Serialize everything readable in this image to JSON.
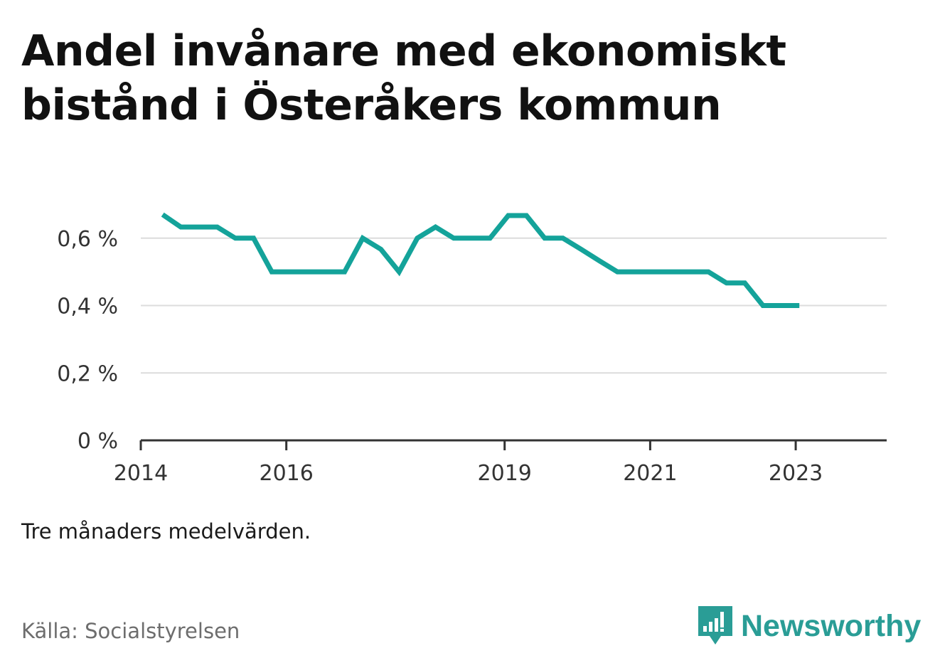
{
  "title": "Andel invånare med ekonomiskt bistånd i Österåkers kommun",
  "note": "Tre månaders medelvärden.",
  "source": "Källa: Socialstyrelsen",
  "brand": {
    "name": "Newsworthy",
    "logo_icon": "bar-chart-speech-bubble-icon",
    "color": "#2a9d96"
  },
  "chart_data": {
    "type": "line",
    "title": "Andel invånare med ekonomiskt bistånd i Österåkers kommun",
    "xlabel": "",
    "ylabel": "",
    "x_unit": "year",
    "xlim": [
      2014.0,
      2024.25
    ],
    "ylim": [
      0,
      0.8
    ],
    "grid": true,
    "line_color": "#14a39a",
    "x_ticks": [
      {
        "value": 2014,
        "label": "2014"
      },
      {
        "value": 2016,
        "label": "2016"
      },
      {
        "value": 2019,
        "label": "2019"
      },
      {
        "value": 2021,
        "label": "2021"
      },
      {
        "value": 2023,
        "label": "2023"
      }
    ],
    "y_ticks": [
      {
        "value": 0,
        "label": "0 %"
      },
      {
        "value": 0.2,
        "label": "0,2 %"
      },
      {
        "value": 0.4,
        "label": "0,4 %"
      },
      {
        "value": 0.6,
        "label": "0,6 %"
      }
    ],
    "series": [
      {
        "x": [
          2014.3,
          2014.55,
          2014.8,
          2015.05,
          2015.3,
          2015.55,
          2015.8,
          2016.05,
          2016.3,
          2016.55,
          2016.8,
          2017.05,
          2017.3,
          2017.55,
          2017.8,
          2018.05,
          2018.3,
          2018.55,
          2018.8,
          2019.05,
          2019.3,
          2019.55,
          2019.8,
          2020.05,
          2020.3,
          2020.55,
          2020.8,
          2021.05,
          2021.3,
          2021.55,
          2021.8,
          2022.05,
          2022.3,
          2022.55,
          2022.8,
          2023.05
        ],
        "values": [
          0.67,
          0.633,
          0.633,
          0.633,
          0.6,
          0.6,
          0.5,
          0.5,
          0.5,
          0.5,
          0.5,
          0.6,
          0.567,
          0.5,
          0.6,
          0.633,
          0.6,
          0.6,
          0.6,
          0.667,
          0.667,
          0.6,
          0.6,
          0.567,
          0.533,
          0.5,
          0.5,
          0.5,
          0.5,
          0.5,
          0.5,
          0.467,
          0.467,
          0.4,
          0.4,
          0.4
        ]
      }
    ]
  }
}
